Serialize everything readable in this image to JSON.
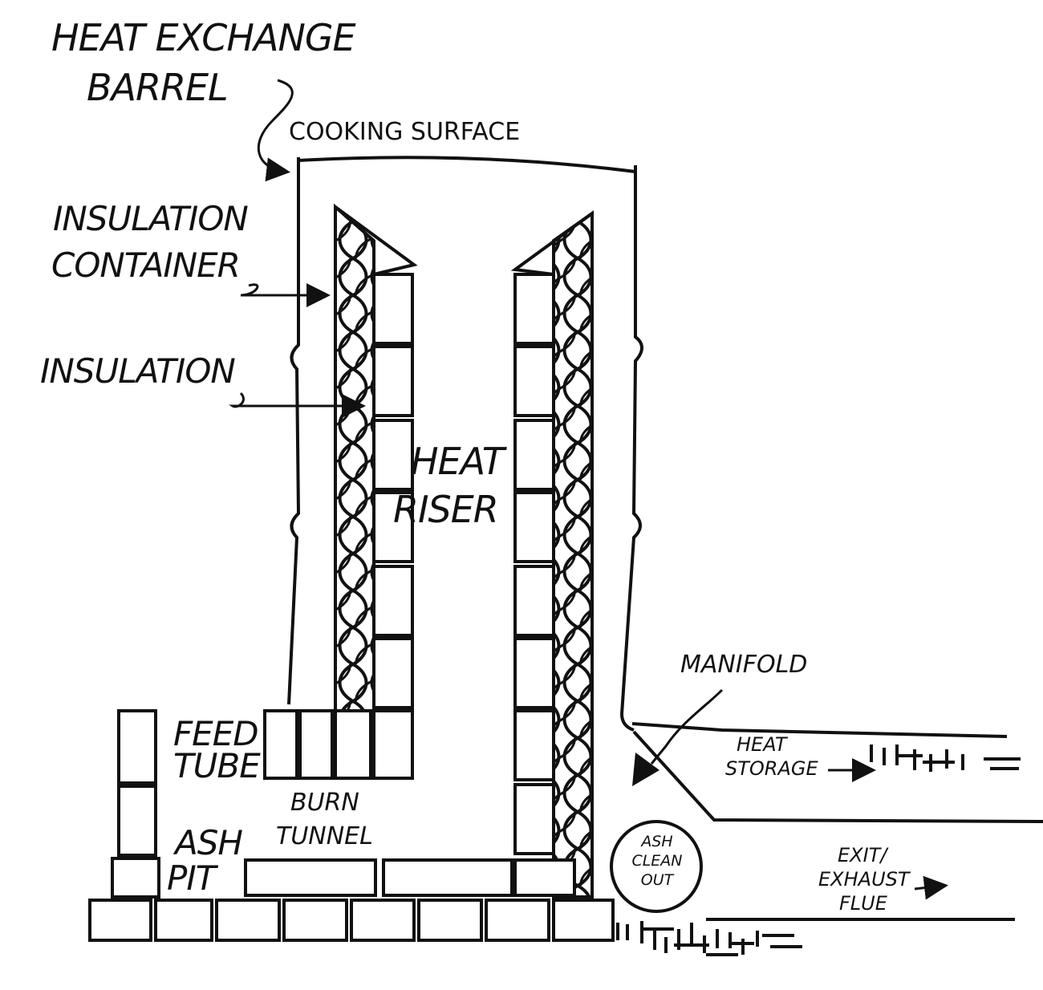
{
  "labels": {
    "heat_exchange": "HEAT EXCHANGE",
    "barrel": "BARREL",
    "cooking_surface": "COOKING SURFACE",
    "insulation_container_1": "INSULATION",
    "insulation_container_2": "CONTAINER",
    "insulation": "INSULATION",
    "heat_riser_1": "HEAT",
    "heat_riser_2": "RISER",
    "manifold": "MANIFOLD",
    "heat_storage_1": "HEAT",
    "heat_storage_2": "STORAGE",
    "feed_tube_1": "FEED",
    "feed_tube_2": "TUBE",
    "burn_tunnel_1": "BURN",
    "burn_tunnel_2": "TUNNEL",
    "ash_pit_1": "ASH",
    "ash_pit_2": "PIT",
    "ash_clean_out_1": "ASH",
    "ash_clean_out_2": "CLEAN",
    "ash_clean_out_3": "OUT",
    "exit_flue_1": "EXIT/",
    "exit_flue_2": "EXHAUST",
    "exit_flue_3": "FLUE"
  },
  "colors": {
    "ink": "#111111",
    "paper": "#ffffff"
  }
}
